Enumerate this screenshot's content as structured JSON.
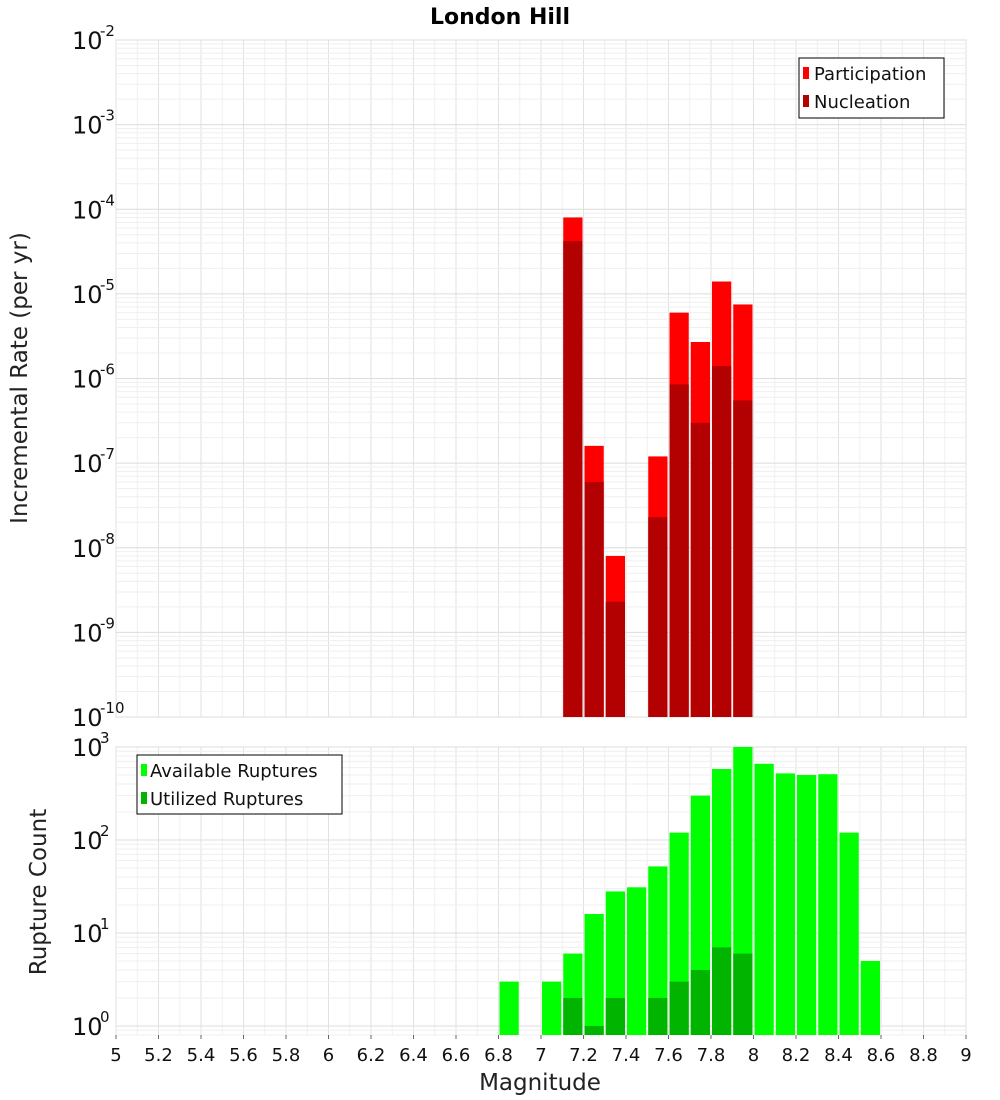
{
  "chart_data": [
    {
      "type": "bar",
      "title": "London Hill",
      "xlabel": "",
      "ylabel": "Incremental Rate (per yr)",
      "yscale": "log",
      "ylim": [
        1e-10,
        0.01
      ],
      "xlim": [
        5,
        9
      ],
      "bin_width": 0.1,
      "y_tick_exponents": [
        -10,
        -9,
        -8,
        -7,
        -6,
        -5,
        -4,
        -3,
        -2
      ],
      "legend_position": "top-right",
      "series": [
        {
          "name": "Participation",
          "color": "#ff0000",
          "x": [
            7.15,
            7.25,
            7.35,
            7.55,
            7.65,
            7.75,
            7.85,
            7.95
          ],
          "values": [
            8e-05,
            1.6e-07,
            8e-09,
            1.2e-07,
            6e-06,
            2.7e-06,
            1.4e-05,
            7.5e-06
          ]
        },
        {
          "name": "Nucleation",
          "color": "#b30000",
          "x": [
            7.15,
            7.25,
            7.35,
            7.55,
            7.65,
            7.75,
            7.85,
            7.95
          ],
          "values": [
            4.2e-05,
            6e-08,
            2.3e-09,
            2.3e-08,
            8.5e-07,
            3e-07,
            1.4e-06,
            5.5e-07
          ]
        }
      ]
    },
    {
      "type": "bar",
      "title": "",
      "xlabel": "Magnitude",
      "ylabel": "Rupture Count",
      "yscale": "log",
      "ylim": [
        0.8,
        1000
      ],
      "xlim": [
        5,
        9
      ],
      "bin_width": 0.1,
      "y_tick_exponents": [
        0,
        1,
        2,
        3
      ],
      "x_tick_labels": [
        "5",
        "5.2",
        "5.4",
        "5.6",
        "5.8",
        "6",
        "6.2",
        "6.4",
        "6.6",
        "6.8",
        "7",
        "7.2",
        "7.4",
        "7.6",
        "7.8",
        "8",
        "8.2",
        "8.4",
        "8.6",
        "8.8",
        "9"
      ],
      "legend_position": "top-left",
      "series": [
        {
          "name": "Available Ruptures",
          "color": "#00ff00",
          "x": [
            6.85,
            7.05,
            7.15,
            7.25,
            7.35,
            7.45,
            7.55,
            7.65,
            7.75,
            7.85,
            7.95,
            8.05,
            8.15,
            8.25,
            8.35,
            8.45,
            8.55
          ],
          "values": [
            3,
            3,
            6,
            16,
            28,
            31,
            52,
            120,
            300,
            580,
            1000,
            660,
            520,
            500,
            510,
            120,
            5
          ]
        },
        {
          "name": "Utilized Ruptures",
          "color": "#00b400",
          "x": [
            7.15,
            7.25,
            7.35,
            7.55,
            7.65,
            7.75,
            7.85,
            7.95
          ],
          "values": [
            2,
            1,
            2,
            2,
            3,
            4,
            7,
            6
          ]
        }
      ]
    }
  ]
}
